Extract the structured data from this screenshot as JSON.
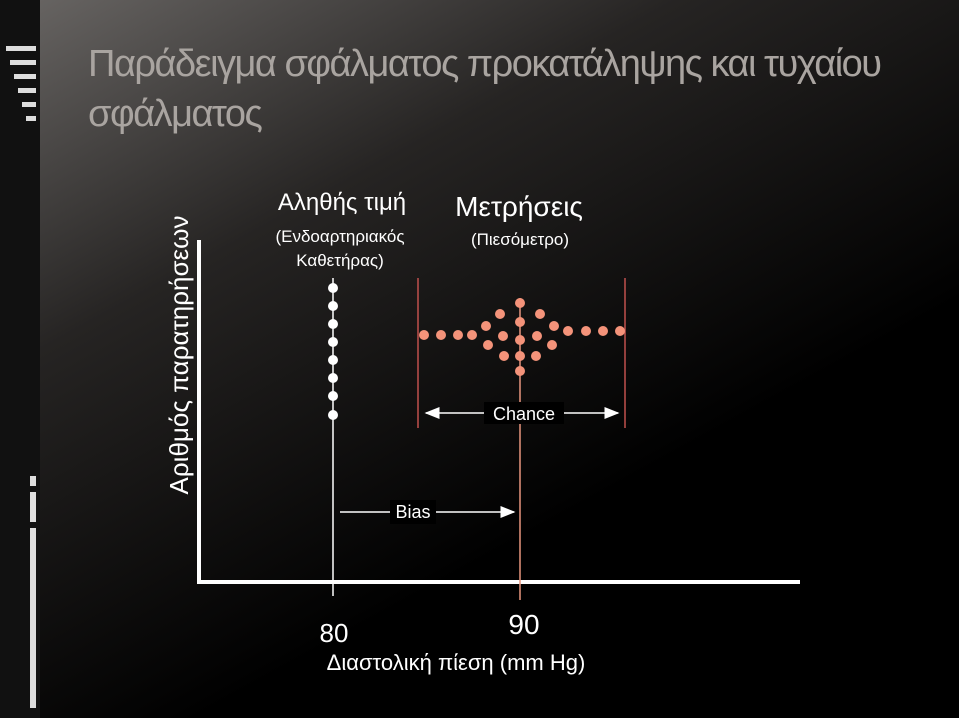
{
  "header": {
    "title_lines": [
      "Παράδειγμα σφάλματος προκατάληψης και τυχαίου",
      "σφάλματος"
    ]
  },
  "diagram": {
    "y_axis_label": "Αριθμός παρατηρήσεων",
    "x_axis_label": "Διαστολική πίεση (mm Hg)",
    "true_value": {
      "title": "Αληθής τιμή",
      "subtitle_lines": [
        "(Ενδοαρτηριακός",
        "Καθετήρας)"
      ],
      "tick": "80"
    },
    "measurements": {
      "title": "Μετρήσεις",
      "subtitle": "(Πιεσόμετρο)",
      "tick": "90"
    },
    "chance_label": "Chance",
    "bias_label": "Bias"
  }
}
